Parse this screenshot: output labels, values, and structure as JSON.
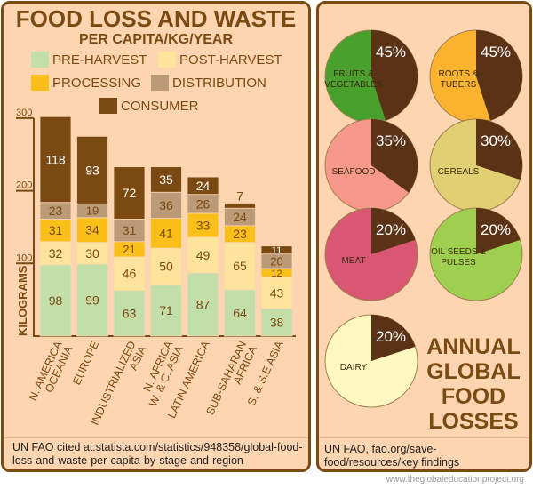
{
  "chart_data": [
    {
      "type": "bar",
      "stacked": true,
      "title": "FOOD LOSS AND WASTE",
      "subtitle": "PER CAPITA/KG/YEAR",
      "ylabel": "KILOGRAMS",
      "ylim": [
        0,
        300
      ],
      "yticks": [
        "100",
        "200",
        "300"
      ],
      "legend_position": "top",
      "categories": [
        "N. AMERICA OCEANIA",
        "EUROPE",
        "INDUSTRIALIZED ASIA",
        "N. AFRICA W. & C. ASIA",
        "LATIN AMERICA",
        "SUB-SAHARAN AFRICA",
        "S. & S.E ASIA"
      ],
      "series": [
        {
          "name": "PRE-HARVEST",
          "color": "#c2dfa9",
          "values": [
            98,
            99,
            63,
            71,
            87,
            64,
            38
          ]
        },
        {
          "name": "POST-HARVEST",
          "color": "#fde49a",
          "values": [
            32,
            30,
            46,
            50,
            49,
            65,
            43
          ]
        },
        {
          "name": "PROCESSING",
          "color": "#fbbf1a",
          "values": [
            31,
            34,
            21,
            41,
            33,
            23,
            12
          ]
        },
        {
          "name": "DISTRIBUTION",
          "color": "#bb9a78",
          "values": [
            23,
            19,
            31,
            36,
            26,
            24,
            20
          ]
        },
        {
          "name": "CONSUMER",
          "color": "#7a4a12",
          "values": [
            118,
            93,
            72,
            35,
            24,
            7,
            11
          ]
        }
      ],
      "source": "UN FAO cited at:statista.com/statistics/948358/global-food-loss-and-waste-per-capita-by-stage-and-region"
    },
    {
      "type": "pie",
      "title": "ANNUAL GLOBAL FOOD LOSSES",
      "items": [
        {
          "label": "FRUITS & VEGETABLES",
          "loss": 45,
          "pct": "45%",
          "color": "#4aa02c"
        },
        {
          "label": "ROOTS & TUBERS",
          "loss": 45,
          "pct": "45%",
          "color": "#fbb22f"
        },
        {
          "label": "SEAFOOD",
          "loss": 35,
          "pct": "35%",
          "color": "#f7998a"
        },
        {
          "label": "CEREALS",
          "loss": 30,
          "pct": "30%",
          "color": "#e0cf73"
        },
        {
          "label": "MEAT",
          "loss": 20,
          "pct": "20%",
          "color": "#d95773"
        },
        {
          "label": "OIL SEEDS & PULSES",
          "loss": 20,
          "pct": "20%",
          "color": "#9fcf4f"
        },
        {
          "label": "DAIRY",
          "loss": 20,
          "pct": "20%",
          "color": "#fdf8c0"
        }
      ],
      "loss_color": "#5a3215",
      "source": "UN FAO, fao.org/save-food/resources/key findings"
    }
  ],
  "credit": "www.theglobaleducationproject.org"
}
